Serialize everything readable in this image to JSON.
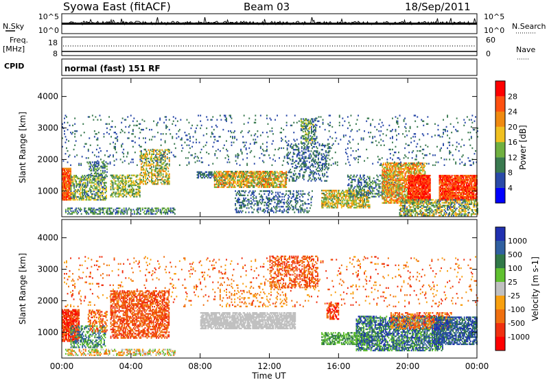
{
  "header": {
    "station": "Syowa East (fitACF)",
    "beam": "Beam 03",
    "date": "18/Sep/2011"
  },
  "strips": {
    "nsky_label": "N.Sky",
    "nsky_ticks": [
      "10^5",
      "10^0"
    ],
    "nsearch_label": "N.Search",
    "nsearch_ticks": [
      "10^5",
      "10^0"
    ],
    "freq_label": "Freq.",
    "freq_unit": "[MHz]",
    "freq_ticks": [
      "18",
      "8"
    ],
    "nave_label": "Nave",
    "nave_ticks": [
      "60",
      "0"
    ],
    "cpid_label": "CPID",
    "cpid_text": "normal (fast) 151 RF"
  },
  "chart_data": [
    {
      "type": "heatmap",
      "panel": "power",
      "ylabel": "Slant Range [km]",
      "y_ticks": [
        "1000",
        "2000",
        "3000",
        "4000"
      ],
      "y_values": [
        1000,
        2000,
        3000,
        4000
      ],
      "ylim": [
        180,
        4580
      ],
      "x_ticks": [
        "00:00",
        "04:00",
        "08:00",
        "12:00",
        "16:00",
        "20:00",
        "00:00"
      ],
      "x_values_hours": [
        0,
        4,
        8,
        12,
        16,
        20,
        24
      ],
      "xlim": [
        0,
        24
      ],
      "colorbar": {
        "label": "Power [dB]",
        "ticks": [
          "4",
          "8",
          "12",
          "16",
          "20",
          "24",
          "28"
        ],
        "tick_values": [
          4,
          8,
          12,
          16,
          20,
          24,
          28
        ],
        "range": [
          0,
          32
        ],
        "colors": [
          "#0000ff",
          "#2a4aa8",
          "#3a7a50",
          "#70b040",
          "#f0c020",
          "#f08a10",
          "#ff5010",
          "#ff0000"
        ]
      },
      "regions": [
        {
          "t0": 0.0,
          "t1": 0.5,
          "r0": 700,
          "r1": 1700,
          "v0": 20,
          "v1": 30,
          "d": 0.9
        },
        {
          "t0": 0.5,
          "t1": 2.6,
          "r0": 700,
          "r1": 1500,
          "v0": 6,
          "v1": 20,
          "d": 0.55
        },
        {
          "t0": 1.5,
          "t1": 2.6,
          "r0": 1400,
          "r1": 1900,
          "v0": 4,
          "v1": 16,
          "d": 0.4
        },
        {
          "t0": 2.8,
          "t1": 4.5,
          "r0": 800,
          "r1": 1500,
          "v0": 8,
          "v1": 20,
          "d": 0.55
        },
        {
          "t0": 4.5,
          "t1": 6.2,
          "r0": 1200,
          "r1": 2300,
          "v0": 8,
          "v1": 24,
          "d": 0.5
        },
        {
          "t0": 0.2,
          "t1": 6.5,
          "r0": 250,
          "r1": 450,
          "v0": 4,
          "v1": 16,
          "d": 0.45
        },
        {
          "t0": 7.8,
          "t1": 8.8,
          "r0": 1400,
          "r1": 1600,
          "v0": 6,
          "v1": 12,
          "d": 0.6
        },
        {
          "t0": 8.8,
          "t1": 13.0,
          "r0": 1100,
          "r1": 1600,
          "v0": 10,
          "v1": 26,
          "d": 0.75
        },
        {
          "t0": 10.0,
          "t1": 14.5,
          "r0": 300,
          "r1": 1000,
          "v0": 4,
          "v1": 12,
          "d": 0.3
        },
        {
          "t0": 13.8,
          "t1": 14.7,
          "r0": 2500,
          "r1": 3300,
          "v0": 6,
          "v1": 18,
          "d": 0.55
        },
        {
          "t0": 13.0,
          "t1": 15.5,
          "r0": 1300,
          "r1": 2500,
          "v0": 4,
          "v1": 12,
          "d": 0.3
        },
        {
          "t0": 15.0,
          "t1": 17.8,
          "r0": 450,
          "r1": 1000,
          "v0": 10,
          "v1": 24,
          "d": 0.65
        },
        {
          "t0": 16.5,
          "t1": 19.5,
          "r0": 800,
          "r1": 1500,
          "v0": 4,
          "v1": 14,
          "d": 0.35
        },
        {
          "t0": 18.5,
          "t1": 21.0,
          "r0": 600,
          "r1": 1900,
          "v0": 12,
          "v1": 28,
          "d": 0.7
        },
        {
          "t0": 20.0,
          "t1": 21.3,
          "r0": 700,
          "r1": 1500,
          "v0": 24,
          "v1": 32,
          "d": 0.85
        },
        {
          "t0": 21.8,
          "t1": 24.0,
          "r0": 700,
          "r1": 1500,
          "v0": 22,
          "v1": 32,
          "d": 0.9
        },
        {
          "t0": 19.5,
          "t1": 24.0,
          "r0": 200,
          "r1": 700,
          "v0": 6,
          "v1": 22,
          "d": 0.55
        },
        {
          "t0": 0.0,
          "t1": 24.0,
          "r0": 1800,
          "r1": 3400,
          "v0": 4,
          "v1": 12,
          "d": 0.06
        }
      ]
    },
    {
      "type": "heatmap",
      "panel": "velocity",
      "ylabel": "Slant Range [km]",
      "y_ticks": [
        "1000",
        "2000",
        "3000",
        "4000"
      ],
      "y_values": [
        1000,
        2000,
        3000,
        4000
      ],
      "ylim": [
        180,
        4580
      ],
      "x_ticks": [
        "00:00",
        "04:00",
        "08:00",
        "12:00",
        "16:00",
        "20:00",
        "00:00"
      ],
      "x_values_hours": [
        0,
        4,
        8,
        12,
        16,
        20,
        24
      ],
      "xlim": [
        0,
        24
      ],
      "xlabel": "Time UT",
      "colorbar": {
        "label": "Velocity [m s-1]",
        "ticks": [
          "1000",
          "500",
          "100",
          "25",
          "-25",
          "-100",
          "-500",
          "-1000"
        ],
        "colors": [
          "#2030b0",
          "#3060a0",
          "#307848",
          "#60c030",
          "#c0c0c0",
          "#f8a010",
          "#f07010",
          "#f03010",
          "#ff0000"
        ]
      },
      "regions": [
        {
          "t0": 0.0,
          "t1": 1.0,
          "r0": 700,
          "r1": 1700,
          "c": [
            6,
            8
          ],
          "d": 0.85
        },
        {
          "t0": 0.5,
          "t1": 2.5,
          "r0": 500,
          "r1": 1200,
          "c": [
            1,
            3
          ],
          "d": 0.5
        },
        {
          "t0": 1.5,
          "t1": 2.6,
          "r0": 1000,
          "r1": 1700,
          "c": [
            5,
            7
          ],
          "d": 0.4
        },
        {
          "t0": 2.8,
          "t1": 6.2,
          "r0": 800,
          "r1": 2300,
          "c": [
            6,
            7
          ],
          "d": 0.6
        },
        {
          "t0": 0.2,
          "t1": 6.5,
          "r0": 250,
          "r1": 450,
          "c": [
            3,
            6
          ],
          "d": 0.4
        },
        {
          "t0": 8.0,
          "t1": 13.5,
          "r0": 1100,
          "r1": 1600,
          "c": [
            4,
            4
          ],
          "d": 0.8
        },
        {
          "t0": 12.0,
          "t1": 14.8,
          "r0": 2400,
          "r1": 3400,
          "c": [
            6,
            7
          ],
          "d": 0.4
        },
        {
          "t0": 9.0,
          "t1": 13.0,
          "r0": 1800,
          "r1": 2600,
          "c": [
            5,
            6
          ],
          "d": 0.12
        },
        {
          "t0": 15.0,
          "t1": 17.8,
          "r0": 600,
          "r1": 1000,
          "c": [
            2,
            3
          ],
          "d": 0.55
        },
        {
          "t0": 15.3,
          "t1": 16.0,
          "r0": 1400,
          "r1": 1900,
          "c": [
            6,
            8
          ],
          "d": 0.6
        },
        {
          "t0": 17.0,
          "t1": 22.0,
          "r0": 400,
          "r1": 1500,
          "c": [
            0,
            3
          ],
          "d": 0.65
        },
        {
          "t0": 19.0,
          "t1": 22.5,
          "r0": 1100,
          "r1": 1600,
          "c": [
            5,
            7
          ],
          "d": 0.4
        },
        {
          "t0": 21.5,
          "t1": 24.0,
          "r0": 600,
          "r1": 1500,
          "c": [
            0,
            2
          ],
          "d": 0.7
        },
        {
          "t0": 0.0,
          "t1": 24.0,
          "r0": 1800,
          "r1": 3400,
          "c": [
            5,
            7
          ],
          "d": 0.05
        }
      ]
    }
  ]
}
